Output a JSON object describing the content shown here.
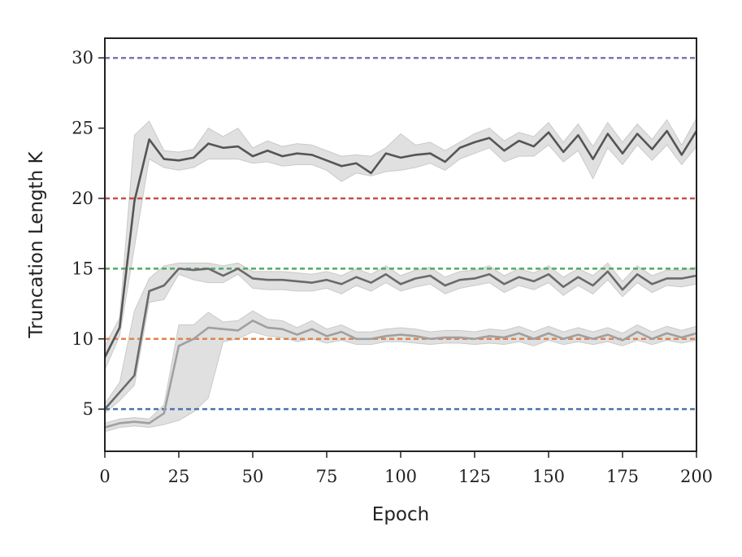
{
  "chart_data": {
    "type": "line",
    "title": "",
    "xlabel": "Epoch",
    "ylabel": "Truncation Length K",
    "xlim": [
      0,
      200
    ],
    "ylim": [
      2,
      31.4
    ],
    "xticks": [
      0,
      25,
      50,
      75,
      100,
      125,
      150,
      175,
      200
    ],
    "yticks": [
      5,
      10,
      15,
      20,
      25,
      30
    ],
    "grid": false,
    "legend": null,
    "reference_lines": [
      {
        "y": 5,
        "color": "#4c72b0"
      },
      {
        "y": 10,
        "color": "#dd8452"
      },
      {
        "y": 15,
        "color": "#55a868"
      },
      {
        "y": 20,
        "color": "#c44e52"
      },
      {
        "y": 30,
        "color": "#8172b3"
      }
    ],
    "x": [
      0,
      5,
      10,
      15,
      20,
      25,
      30,
      35,
      40,
      45,
      50,
      55,
      60,
      65,
      70,
      75,
      80,
      85,
      90,
      95,
      100,
      105,
      110,
      115,
      120,
      125,
      130,
      135,
      140,
      145,
      150,
      155,
      160,
      165,
      170,
      175,
      180,
      185,
      190,
      195,
      200
    ],
    "series": [
      {
        "color": "#555555",
        "values": [
          8.7,
          10.8,
          19.8,
          24.2,
          22.8,
          22.7,
          22.9,
          23.9,
          23.6,
          23.7,
          23.0,
          23.4,
          23.0,
          23.2,
          23.1,
          22.7,
          22.3,
          22.5,
          21.8,
          23.2,
          22.9,
          23.1,
          23.2,
          22.6,
          23.6,
          24.0,
          24.3,
          23.4,
          24.1,
          23.7,
          24.7,
          23.3,
          24.5,
          22.8,
          24.6,
          23.2,
          24.6,
          23.5,
          24.8,
          23.1,
          24.8
        ],
        "lower": [
          7.8,
          10.2,
          16.5,
          22.8,
          22.2,
          22.0,
          22.2,
          22.8,
          22.8,
          22.8,
          22.5,
          22.6,
          22.3,
          22.4,
          22.4,
          22.0,
          21.2,
          21.8,
          21.6,
          21.9,
          22.0,
          22.2,
          22.5,
          22.0,
          22.8,
          23.2,
          23.6,
          22.6,
          23.0,
          23.0,
          23.8,
          22.6,
          23.4,
          21.4,
          23.6,
          22.4,
          23.8,
          22.7,
          23.8,
          22.4,
          23.7
        ],
        "upper": [
          9.5,
          11.5,
          24.5,
          25.5,
          23.4,
          23.3,
          23.5,
          25.0,
          24.4,
          25.0,
          23.6,
          24.1,
          23.7,
          23.9,
          23.8,
          23.4,
          23.0,
          23.1,
          23.0,
          23.6,
          24.6,
          23.8,
          24.0,
          23.4,
          24.0,
          24.6,
          25.0,
          24.1,
          24.7,
          24.4,
          25.4,
          24.0,
          25.3,
          23.7,
          25.4,
          24.0,
          25.3,
          24.2,
          25.6,
          23.8,
          25.7
        ]
      },
      {
        "color": "#6a6a6a",
        "values": [
          5.0,
          6.2,
          7.4,
          13.4,
          13.8,
          15.0,
          14.9,
          15.0,
          14.5,
          15.0,
          14.3,
          14.2,
          14.2,
          14.1,
          14.0,
          14.2,
          13.9,
          14.4,
          14.0,
          14.6,
          13.9,
          14.3,
          14.5,
          13.8,
          14.2,
          14.3,
          14.6,
          13.9,
          14.4,
          14.1,
          14.6,
          13.7,
          14.4,
          13.8,
          14.8,
          13.5,
          14.6,
          13.9,
          14.3,
          14.3,
          14.5
        ],
        "lower": [
          4.7,
          5.6,
          6.7,
          12.6,
          12.8,
          14.6,
          14.2,
          14.0,
          14.0,
          14.6,
          13.6,
          13.5,
          13.5,
          13.4,
          13.4,
          13.6,
          13.2,
          13.8,
          13.4,
          14.0,
          13.4,
          13.7,
          13.9,
          13.2,
          13.6,
          13.8,
          14.0,
          13.3,
          13.8,
          13.5,
          14.0,
          13.1,
          13.8,
          13.2,
          14.2,
          13.0,
          14.0,
          13.3,
          13.8,
          13.7,
          13.9
        ],
        "upper": [
          5.4,
          6.9,
          12.0,
          14.3,
          15.2,
          15.4,
          15.4,
          15.4,
          15.2,
          15.4,
          14.8,
          14.8,
          14.8,
          14.7,
          14.6,
          14.8,
          14.5,
          15.0,
          14.6,
          15.2,
          14.5,
          14.9,
          15.1,
          14.4,
          14.8,
          14.9,
          15.2,
          14.5,
          15.0,
          14.7,
          15.2,
          14.4,
          15.0,
          14.5,
          15.4,
          14.1,
          15.2,
          14.5,
          14.9,
          14.9,
          15.1
        ]
      },
      {
        "color": "#a0a0a0",
        "values": [
          3.7,
          4.0,
          4.1,
          4.0,
          4.7,
          9.5,
          10.0,
          10.8,
          10.7,
          10.6,
          11.3,
          10.8,
          10.7,
          10.3,
          10.7,
          10.2,
          10.5,
          10.0,
          10.0,
          10.2,
          10.3,
          10.2,
          10.0,
          10.1,
          10.1,
          10.0,
          10.2,
          10.1,
          10.4,
          10.0,
          10.4,
          10.0,
          10.3,
          10.0,
          10.3,
          9.9,
          10.5,
          10.0,
          10.4,
          10.1,
          10.4
        ],
        "lower": [
          3.4,
          3.7,
          3.8,
          3.7,
          3.9,
          4.2,
          4.8,
          5.8,
          9.8,
          10.0,
          10.5,
          10.2,
          10.1,
          9.8,
          10.0,
          9.7,
          9.9,
          9.6,
          9.6,
          9.8,
          9.8,
          9.7,
          9.6,
          9.7,
          9.7,
          9.6,
          9.7,
          9.6,
          9.8,
          9.5,
          9.9,
          9.6,
          9.8,
          9.6,
          9.8,
          9.5,
          9.9,
          9.6,
          9.9,
          9.7,
          9.9
        ],
        "upper": [
          4.0,
          4.3,
          4.4,
          4.3,
          5.3,
          11.0,
          11.0,
          11.9,
          11.2,
          11.3,
          12.0,
          11.4,
          11.3,
          10.8,
          11.3,
          10.7,
          11.0,
          10.5,
          10.5,
          10.7,
          10.8,
          10.7,
          10.5,
          10.6,
          10.6,
          10.5,
          10.7,
          10.6,
          10.9,
          10.5,
          10.9,
          10.5,
          10.8,
          10.5,
          10.8,
          10.4,
          11.0,
          10.5,
          10.9,
          10.6,
          10.9
        ]
      }
    ]
  }
}
